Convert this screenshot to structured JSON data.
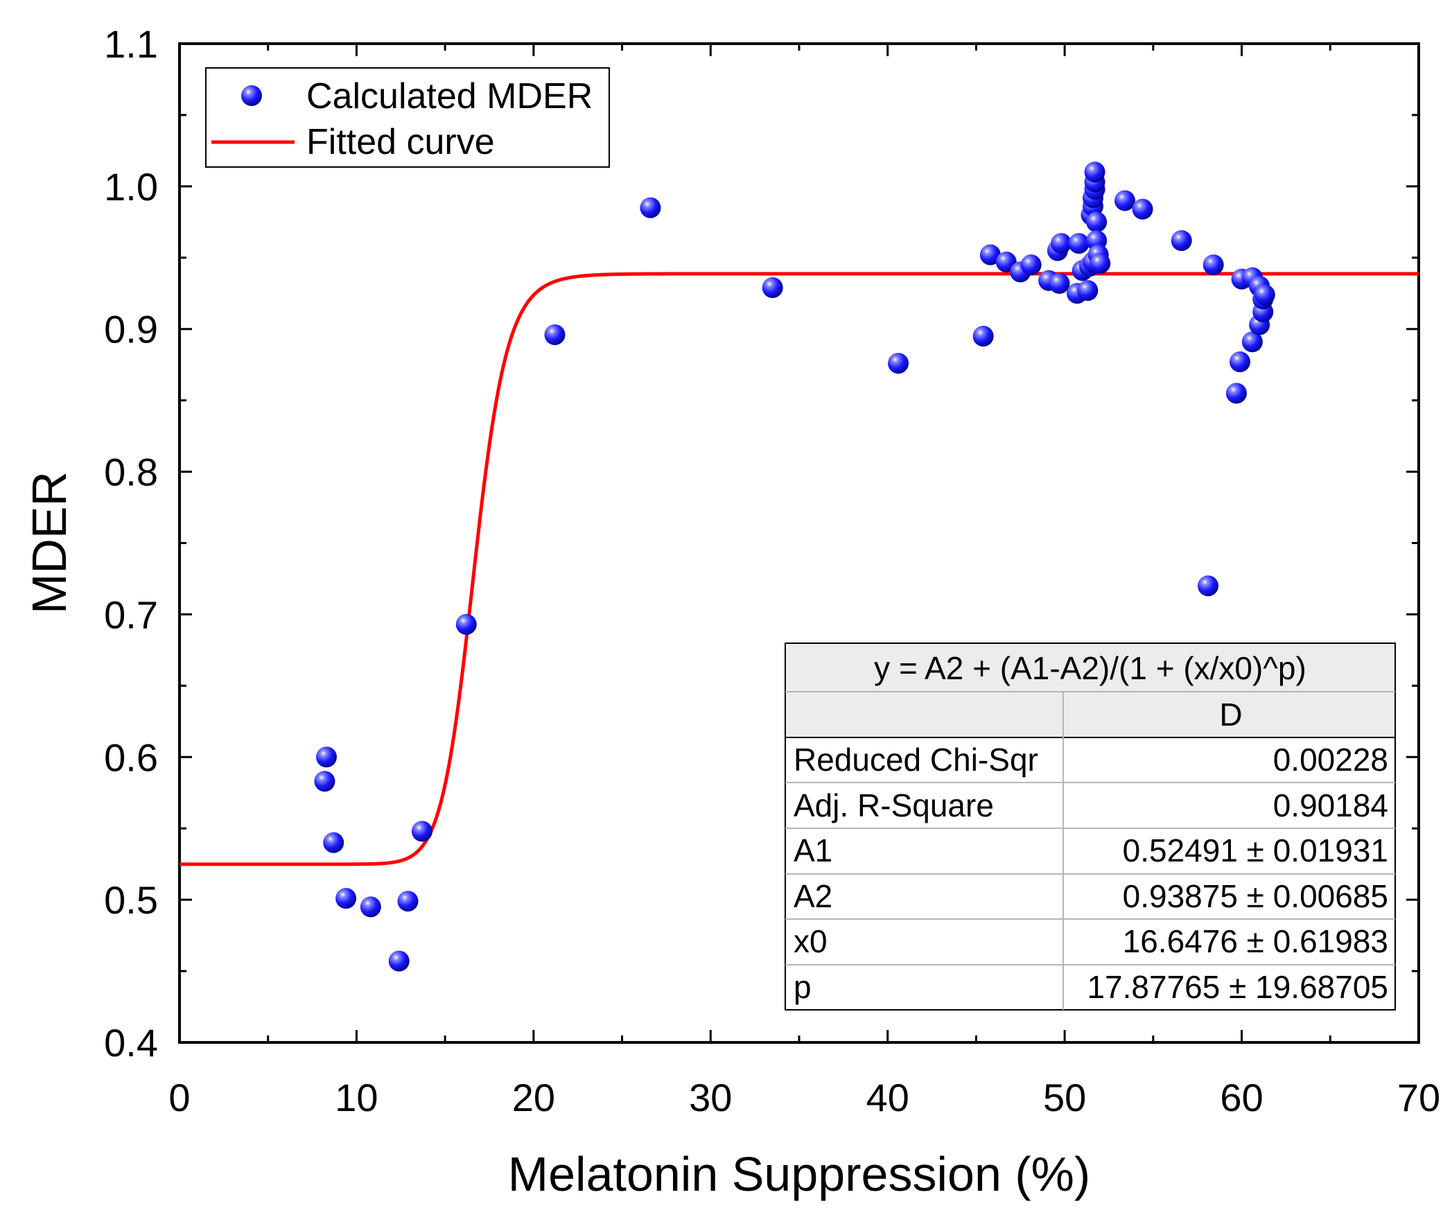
{
  "chart_data": {
    "type": "scatter",
    "xlabel": "Melatonin Suppression (%)",
    "ylabel": "MDER",
    "xlim": [
      0,
      70
    ],
    "ylim": [
      0.4,
      1.1
    ],
    "xticks": [
      "0",
      "10",
      "20",
      "30",
      "40",
      "50",
      "60",
      "70"
    ],
    "yticks": [
      "0.4",
      "0.5",
      "0.6",
      "0.7",
      "0.8",
      "0.9",
      "1.0",
      "1.1"
    ],
    "grid": false,
    "legend_position": "top-left",
    "legend": [
      {
        "label": "Calculated MDER",
        "marker": "sphere",
        "color": "#1010e0"
      },
      {
        "label": "Fitted curve",
        "marker": "line",
        "color": "#ff0000"
      }
    ],
    "series": [
      {
        "name": "Calculated MDER",
        "kind": "scatter",
        "color": "#1010e0",
        "points": [
          [
            8.3,
            0.6
          ],
          [
            8.2,
            0.583
          ],
          [
            8.7,
            0.54
          ],
          [
            9.4,
            0.501
          ],
          [
            10.8,
            0.495
          ],
          [
            12.4,
            0.457
          ],
          [
            12.9,
            0.499
          ],
          [
            13.7,
            0.548
          ],
          [
            16.2,
            0.693
          ],
          [
            21.2,
            0.896
          ],
          [
            26.6,
            0.985
          ],
          [
            33.5,
            0.929
          ],
          [
            40.6,
            0.876
          ],
          [
            45.4,
            0.895
          ],
          [
            45.8,
            0.952
          ],
          [
            46.7,
            0.947
          ],
          [
            47.5,
            0.94
          ],
          [
            48.1,
            0.945
          ],
          [
            49.1,
            0.934
          ],
          [
            49.7,
            0.932
          ],
          [
            49.6,
            0.955
          ],
          [
            49.8,
            0.96
          ],
          [
            50.7,
            0.925
          ],
          [
            50.8,
            0.96
          ],
          [
            51.0,
            0.941
          ],
          [
            51.3,
            0.927
          ],
          [
            51.4,
            0.944
          ],
          [
            51.6,
            0.947
          ],
          [
            51.5,
            0.98
          ],
          [
            51.6,
            0.986
          ],
          [
            51.6,
            0.992
          ],
          [
            51.7,
            0.998
          ],
          [
            51.7,
            1.003
          ],
          [
            51.7,
            1.01
          ],
          [
            51.8,
            0.975
          ],
          [
            51.8,
            0.962
          ],
          [
            51.9,
            0.952
          ],
          [
            52.0,
            0.946
          ],
          [
            53.4,
            0.99
          ],
          [
            54.4,
            0.984
          ],
          [
            56.6,
            0.962
          ],
          [
            58.1,
            0.72
          ],
          [
            58.4,
            0.945
          ],
          [
            59.7,
            0.855
          ],
          [
            59.9,
            0.877
          ],
          [
            60.0,
            0.935
          ],
          [
            60.6,
            0.891
          ],
          [
            60.6,
            0.936
          ],
          [
            61.0,
            0.903
          ],
          [
            61.0,
            0.93
          ],
          [
            61.2,
            0.912
          ],
          [
            61.2,
            0.921
          ],
          [
            61.3,
            0.924
          ]
        ]
      },
      {
        "name": "Fitted curve",
        "kind": "line",
        "color": "#ff0000",
        "model": {
          "A1": 0.52491,
          "A2": 0.93875,
          "x0": 16.6476,
          "p": 17.87765
        },
        "x_range": [
          0,
          70
        ]
      }
    ],
    "annotation_table": {
      "title": "y = A2 + (A1-A2)/(1 + (x/x0)^p)",
      "column_header": "D",
      "rows": [
        {
          "label": "Reduced Chi-Sqr",
          "value": "0.00228"
        },
        {
          "label": "Adj. R-Square",
          "value": "0.90184"
        },
        {
          "label": "A1",
          "value": "0.52491 ± 0.01931"
        },
        {
          "label": "A2",
          "value": "0.93875 ± 0.00685"
        },
        {
          "label": "x0",
          "value": "16.6476 ± 0.61983"
        },
        {
          "label": "p",
          "value": "17.87765 ± 19.68705"
        }
      ]
    }
  }
}
